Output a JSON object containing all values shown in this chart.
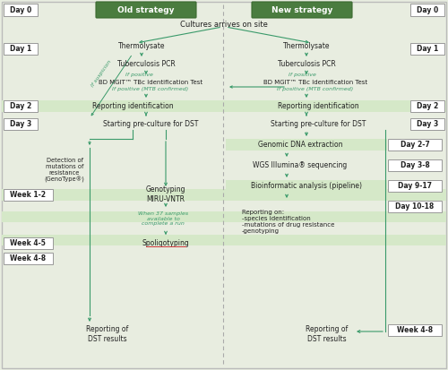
{
  "fig_width": 5.0,
  "fig_height": 4.13,
  "dpi": 100,
  "main_bg": "#e8ede0",
  "header_green": "#4a7c3f",
  "header_green_dark": "#3a6a2f",
  "arrow_color": "#3a9a6a",
  "label_green": "#3a9a6a",
  "box_border": "#999999",
  "day_box_bg": "#ffffff",
  "row_highlight": "#d5e8c8",
  "dashed_color": "#aaaaaa",
  "text_dark": "#222222",
  "red_underline": "#cc3333",
  "title_text": "Cultures arrives on site",
  "old_strategy_label": "Old strategy",
  "new_strategy_label": "New strategy"
}
